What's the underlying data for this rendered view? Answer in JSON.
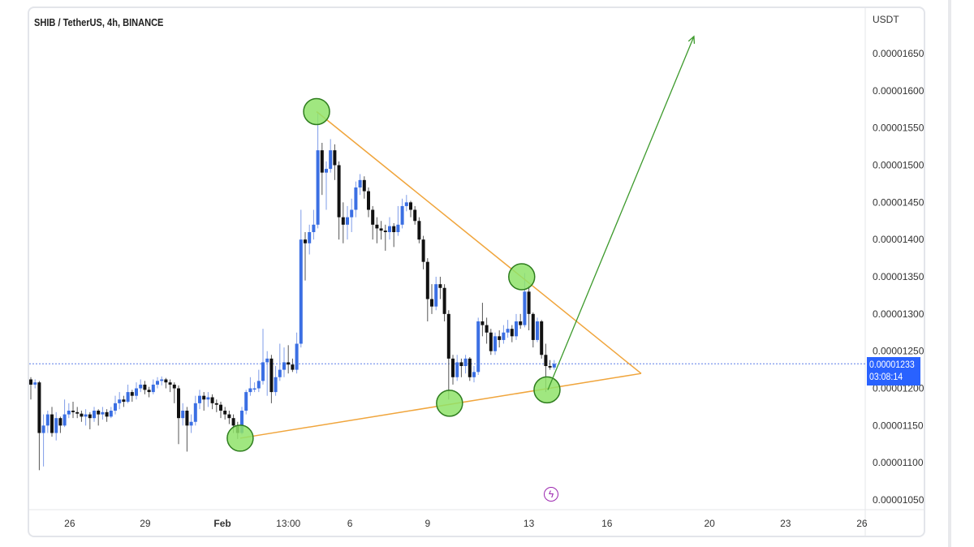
{
  "chart_data": {
    "type": "candlestick",
    "title": "SHIB / TetherUS, 4h, BINANCE",
    "currency": "USDT",
    "price_unit": "1e-8 USDT",
    "ylim": [
      1020,
      1690
    ],
    "y_ticks": [
      "0.00001650",
      "0.00001600",
      "0.00001550",
      "0.00001500",
      "0.00001450",
      "0.00001400",
      "0.00001350",
      "0.00001300",
      "0.00001250",
      "0.00001200",
      "0.00001150",
      "0.00001100",
      "0.00001050"
    ],
    "y_tick_values": [
      1650,
      1600,
      1550,
      1500,
      1450,
      1400,
      1350,
      1300,
      1250,
      1200,
      1150,
      1100,
      1050
    ],
    "x_ticks": [
      {
        "label": "26",
        "bar": 9.2
      },
      {
        "label": "29",
        "bar": 27.1
      },
      {
        "label": "Feb",
        "bar": 45.4,
        "bold": true
      },
      {
        "label": "13:00",
        "bar": 61
      },
      {
        "label": "6",
        "bar": 75.6
      },
      {
        "label": "9",
        "bar": 94
      },
      {
        "label": "13",
        "bar": 118
      },
      {
        "label": "16",
        "bar": 136.5
      },
      {
        "label": "20",
        "bar": 160.8
      },
      {
        "label": "23",
        "bar": 178.8
      },
      {
        "label": "26",
        "bar": 196.9
      }
    ],
    "last_price": "0.00001233",
    "last_price_value": 1233,
    "countdown": "03:08:14",
    "colors": {
      "up": "#3b6fe3",
      "down": "#111111",
      "triangle": "#f0a53c",
      "arrow": "#3d9a2c",
      "circle_fill": "#8fe36a",
      "circle_stroke": "#2e7d1e",
      "price_tag": "#2962ff",
      "last_line": "#5b7fe8"
    },
    "ohlc": [
      [
        1212,
        1215,
        1185,
        1205
      ],
      [
        1205,
        1212,
        1200,
        1208
      ],
      [
        1208,
        1210,
        1090,
        1140
      ],
      [
        1140,
        1165,
        1095,
        1150
      ],
      [
        1150,
        1170,
        1140,
        1165
      ],
      [
        1165,
        1175,
        1135,
        1140
      ],
      [
        1140,
        1168,
        1130,
        1160
      ],
      [
        1160,
        1162,
        1140,
        1150
      ],
      [
        1150,
        1185,
        1148,
        1165
      ],
      [
        1165,
        1180,
        1160,
        1170
      ],
      [
        1170,
        1182,
        1160,
        1168
      ],
      [
        1168,
        1175,
        1160,
        1166
      ],
      [
        1166,
        1170,
        1155,
        1162
      ],
      [
        1162,
        1172,
        1150,
        1165
      ],
      [
        1165,
        1168,
        1145,
        1160
      ],
      [
        1160,
        1175,
        1155,
        1170
      ],
      [
        1170,
        1172,
        1150,
        1165
      ],
      [
        1165,
        1175,
        1158,
        1168
      ],
      [
        1168,
        1172,
        1155,
        1162
      ],
      [
        1162,
        1175,
        1160,
        1170
      ],
      [
        1170,
        1190,
        1165,
        1180
      ],
      [
        1180,
        1195,
        1172,
        1185
      ],
      [
        1185,
        1190,
        1175,
        1182
      ],
      [
        1182,
        1205,
        1180,
        1195
      ],
      [
        1195,
        1198,
        1182,
        1190
      ],
      [
        1190,
        1208,
        1185,
        1200
      ],
      [
        1200,
        1212,
        1195,
        1205
      ],
      [
        1205,
        1210,
        1192,
        1198
      ],
      [
        1198,
        1202,
        1188,
        1195
      ],
      [
        1195,
        1212,
        1192,
        1205
      ],
      [
        1205,
        1215,
        1200,
        1210
      ],
      [
        1210,
        1216,
        1204,
        1212
      ],
      [
        1212,
        1214,
        1200,
        1208
      ],
      [
        1208,
        1212,
        1195,
        1205
      ],
      [
        1205,
        1208,
        1180,
        1200
      ],
      [
        1200,
        1204,
        1125,
        1160
      ],
      [
        1160,
        1180,
        1150,
        1170
      ],
      [
        1170,
        1175,
        1115,
        1150
      ],
      [
        1150,
        1165,
        1140,
        1155
      ],
      [
        1155,
        1190,
        1150,
        1180
      ],
      [
        1180,
        1198,
        1172,
        1190
      ],
      [
        1190,
        1195,
        1170,
        1185
      ],
      [
        1185,
        1195,
        1175,
        1188
      ],
      [
        1188,
        1192,
        1172,
        1180
      ],
      [
        1180,
        1185,
        1168,
        1178
      ],
      [
        1178,
        1182,
        1160,
        1170
      ],
      [
        1170,
        1175,
        1158,
        1165
      ],
      [
        1165,
        1170,
        1152,
        1160
      ],
      [
        1160,
        1165,
        1140,
        1150
      ],
      [
        1150,
        1155,
        1132,
        1140
      ],
      [
        1140,
        1175,
        1138,
        1170
      ],
      [
        1170,
        1198,
        1165,
        1195
      ],
      [
        1195,
        1215,
        1190,
        1200
      ],
      [
        1200,
        1208,
        1195,
        1200
      ],
      [
        1200,
        1225,
        1195,
        1210
      ],
      [
        1210,
        1280,
        1205,
        1235
      ],
      [
        1235,
        1250,
        1190,
        1240
      ],
      [
        1240,
        1245,
        1180,
        1195
      ],
      [
        1195,
        1230,
        1190,
        1215
      ],
      [
        1215,
        1260,
        1210,
        1225
      ],
      [
        1225,
        1255,
        1215,
        1235
      ],
      [
        1235,
        1258,
        1220,
        1232
      ],
      [
        1232,
        1240,
        1222,
        1225
      ],
      [
        1225,
        1275,
        1220,
        1260
      ],
      [
        1260,
        1440,
        1255,
        1400
      ],
      [
        1400,
        1410,
        1345,
        1395
      ],
      [
        1395,
        1420,
        1380,
        1410
      ],
      [
        1410,
        1440,
        1400,
        1420
      ],
      [
        1420,
        1570,
        1415,
        1520
      ],
      [
        1520,
        1530,
        1460,
        1490
      ],
      [
        1490,
        1505,
        1440,
        1495
      ],
      [
        1495,
        1535,
        1490,
        1520
      ],
      [
        1520,
        1528,
        1480,
        1500
      ],
      [
        1500,
        1505,
        1400,
        1430
      ],
      [
        1430,
        1450,
        1395,
        1420
      ],
      [
        1420,
        1445,
        1400,
        1430
      ],
      [
        1430,
        1455,
        1410,
        1440
      ],
      [
        1440,
        1478,
        1430,
        1470
      ],
      [
        1470,
        1488,
        1460,
        1480
      ],
      [
        1480,
        1485,
        1455,
        1465
      ],
      [
        1465,
        1470,
        1430,
        1440
      ],
      [
        1440,
        1445,
        1400,
        1420
      ],
      [
        1420,
        1430,
        1395,
        1415
      ],
      [
        1415,
        1425,
        1400,
        1412
      ],
      [
        1412,
        1420,
        1385,
        1410
      ],
      [
        1410,
        1430,
        1400,
        1418
      ],
      [
        1418,
        1422,
        1390,
        1410
      ],
      [
        1410,
        1445,
        1405,
        1420
      ],
      [
        1420,
        1455,
        1415,
        1445
      ],
      [
        1445,
        1460,
        1438,
        1450
      ],
      [
        1450,
        1452,
        1430,
        1440
      ],
      [
        1440,
        1445,
        1420,
        1425
      ],
      [
        1425,
        1430,
        1395,
        1400
      ],
      [
        1400,
        1405,
        1360,
        1370
      ],
      [
        1370,
        1375,
        1290,
        1320
      ],
      [
        1320,
        1340,
        1300,
        1310
      ],
      [
        1310,
        1350,
        1305,
        1340
      ],
      [
        1340,
        1350,
        1320,
        1335
      ],
      [
        1335,
        1340,
        1290,
        1300
      ],
      [
        1300,
        1305,
        1185,
        1240
      ],
      [
        1240,
        1245,
        1205,
        1215
      ],
      [
        1215,
        1245,
        1210,
        1235
      ],
      [
        1235,
        1240,
        1215,
        1230
      ],
      [
        1230,
        1245,
        1220,
        1240
      ],
      [
        1240,
        1242,
        1210,
        1215
      ],
      [
        1215,
        1230,
        1208,
        1222
      ],
      [
        1222,
        1295,
        1218,
        1290
      ],
      [
        1290,
        1315,
        1270,
        1285
      ],
      [
        1285,
        1295,
        1260,
        1275
      ],
      [
        1275,
        1280,
        1245,
        1250
      ],
      [
        1250,
        1275,
        1245,
        1270
      ],
      [
        1270,
        1278,
        1255,
        1265
      ],
      [
        1265,
        1285,
        1260,
        1275
      ],
      [
        1275,
        1292,
        1268,
        1280
      ],
      [
        1280,
        1285,
        1262,
        1270
      ],
      [
        1270,
        1300,
        1265,
        1290
      ],
      [
        1290,
        1300,
        1280,
        1285
      ],
      [
        1285,
        1355,
        1282,
        1330
      ],
      [
        1330,
        1338,
        1278,
        1300
      ],
      [
        1300,
        1302,
        1255,
        1265
      ],
      [
        1265,
        1295,
        1262,
        1290
      ],
      [
        1290,
        1292,
        1240,
        1245
      ],
      [
        1245,
        1260,
        1195,
        1230
      ],
      [
        1230,
        1238,
        1225,
        1228
      ],
      [
        1228,
        1238,
        1225,
        1233
      ]
    ],
    "annotations": {
      "pivot_circles": [
        {
          "bar": 67.7,
          "price": 1572
        },
        {
          "bar": 49.6,
          "price": 1133
        },
        {
          "bar": 99.2,
          "price": 1180
        },
        {
          "bar": 116.3,
          "price": 1350
        },
        {
          "bar": 122.3,
          "price": 1198
        }
      ],
      "triangle_apex": {
        "bar": 144.6,
        "price": 1220
      },
      "breakout_arrow": {
        "from": {
          "bar": 122.5,
          "price": 1198
        },
        "to": {
          "bar": 157.1,
          "price": 1673
        }
      }
    }
  }
}
